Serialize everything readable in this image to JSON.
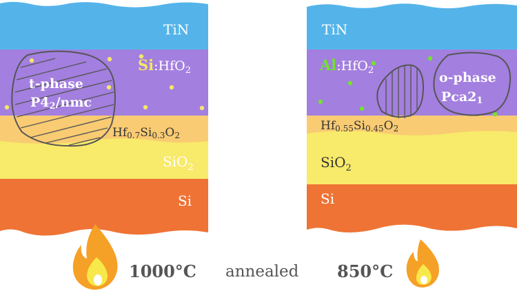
{
  "left_stack": {
    "tin": "TiN",
    "dopant": "Si",
    "hfo2_suffix": ":HfO",
    "hfo2_sub": "2",
    "phase_name": "t-phase",
    "space_group_a": "P4",
    "space_group_sub": "2",
    "space_group_b": "/nmc",
    "interlayer_a": "Hf",
    "interlayer_s1": "0.7",
    "interlayer_b": "Si",
    "interlayer_s2": "0.3",
    "interlayer_c": "O",
    "interlayer_s3": "2",
    "sio2": "SiO",
    "sio2_sub": "2",
    "si": "Si"
  },
  "right_stack": {
    "tin": "TiN",
    "dopant": "Al",
    "hfo2_suffix": ":HfO",
    "hfo2_sub": "2",
    "phase_name": "o-phase",
    "space_group": "Pca2",
    "space_group_sub": "1",
    "interlayer_a": "Hf",
    "interlayer_s1": "0.55",
    "interlayer_b": "Si",
    "interlayer_s2": "0.45",
    "interlayer_c": "O",
    "interlayer_s3": "2",
    "sio2": "SiO",
    "sio2_sub": "2",
    "si": "Si"
  },
  "bottom": {
    "left_temp": "1000°C",
    "middle": "annealed",
    "right_temp": "850°C"
  },
  "colors": {
    "tin": "#54b4ea",
    "hfo2": "#a37fdf",
    "interlayer": "#f9cb72",
    "sio2": "#f8ea6a",
    "si": "#ef7334",
    "si_dopant": "#f3e66a",
    "al_dopant": "#72e22d",
    "flame_outer": "#f5a026",
    "flame_inner": "#f7e94b"
  },
  "icons": [
    "flame-icon",
    "flame-icon"
  ]
}
